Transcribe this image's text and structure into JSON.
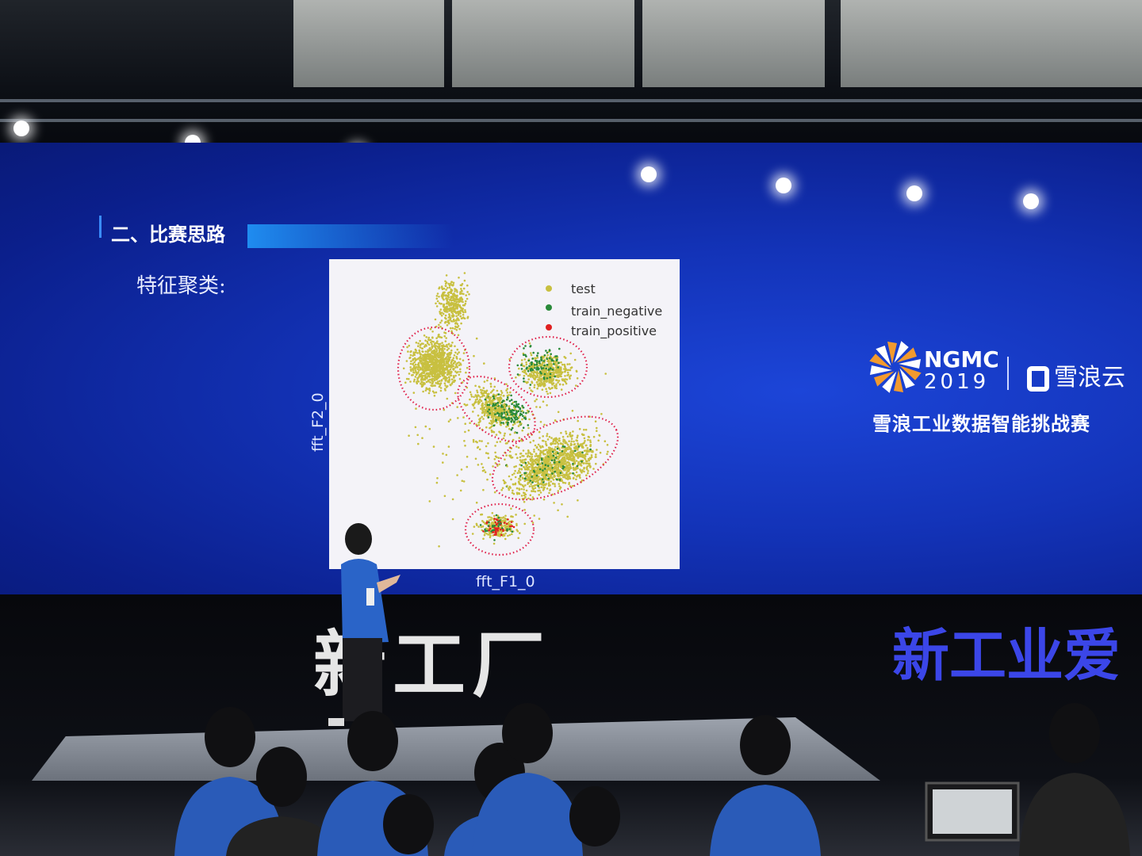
{
  "slide": {
    "section_title": "二、比赛思路",
    "subtitle": "特征聚类:",
    "logo": {
      "event": "NGMC",
      "year": "2019",
      "brand": "雪浪云",
      "contest": "雪浪工业数据智能挑战赛"
    }
  },
  "stage": {
    "backdrop_left": "新工厂",
    "backdrop_right": "新工业爱"
  },
  "colors": {
    "screen_blue": "#1333b8",
    "test": "#c8c040",
    "train_negative": "#2a8a3a",
    "train_positive": "#e02020",
    "cluster_outline": "#e0204a"
  },
  "chart_data": {
    "type": "scatter",
    "title": "",
    "xlabel": "fft_F1_0",
    "ylabel": "fft_F2_0",
    "legend_position": "top-right",
    "grid": false,
    "series": [
      {
        "name": "test",
        "color": "#c8c040"
      },
      {
        "name": "train_negative",
        "color": "#2a8a3a"
      },
      {
        "name": "train_positive",
        "color": "#e02020"
      }
    ],
    "annotations": "5 dotted red ellipses marking clusters"
  }
}
